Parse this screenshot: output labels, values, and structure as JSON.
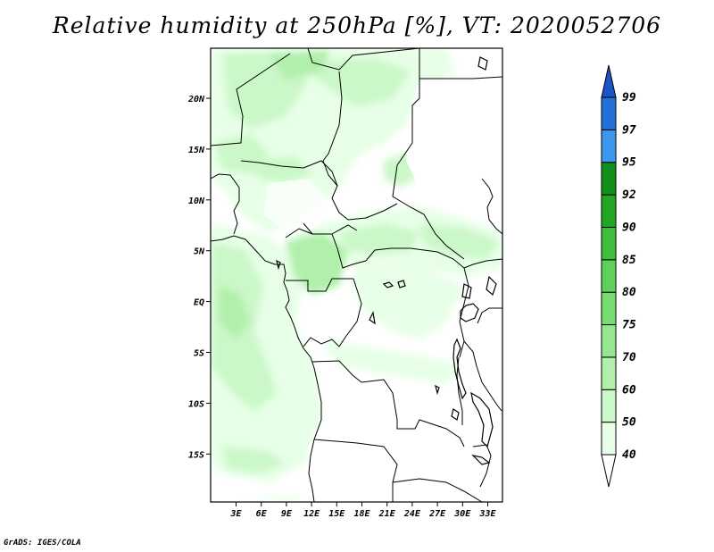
{
  "title": "Relative humidity at 250hPa [%], VT: 2020052706",
  "credit": "GrADS: IGES/COLA",
  "map": {
    "lat_labels": [
      "20N",
      "15N",
      "10N",
      "5N",
      "EQ",
      "5S",
      "10S",
      "15S"
    ],
    "lon_labels": [
      "3E",
      "6E",
      "9E",
      "12E",
      "15E",
      "18E",
      "21E",
      "24E",
      "27E",
      "30E",
      "33E"
    ]
  },
  "colorbar": {
    "levels": [
      "40",
      "50",
      "60",
      "70",
      "75",
      "80",
      "85",
      "90",
      "92",
      "95",
      "97",
      "99"
    ],
    "colors": [
      "#ffffff",
      "#e6ffe6",
      "#cbf8c8",
      "#b0f0aa",
      "#96e792",
      "#78dd70",
      "#5fd05a",
      "#40bd3c",
      "#22a722",
      "#11901b",
      "#3c97ee",
      "#2171d8",
      "#1a55c6"
    ]
  }
}
